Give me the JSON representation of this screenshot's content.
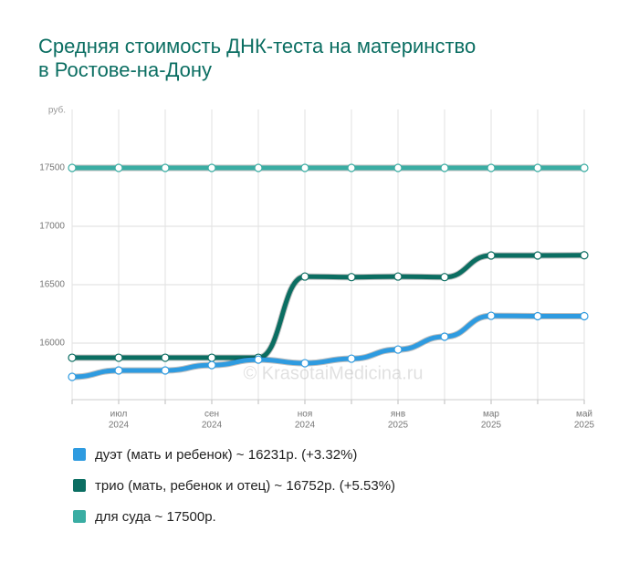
{
  "chart_data": {
    "type": "line",
    "title": [
      "Средняя стоимость ДНК-теста на материнство",
      "в Ростове-на-Дону"
    ],
    "y_unit": "руб.",
    "watermark": "© KrasotaiMedicina.ru",
    "categories": [
      null,
      "июл",
      null,
      "сен",
      null,
      "ноя",
      null,
      "янв",
      null,
      "мар",
      null,
      "май"
    ],
    "category_years": [
      null,
      "2024",
      null,
      "2024",
      null,
      "2024",
      null,
      "2025",
      null,
      "2025",
      null,
      "2025"
    ],
    "series": [
      {
        "name": "дуэт (мать и ребенок) ~ 16231р. (+3.32%)",
        "color": "#2e9be0",
        "values": [
          15711,
          15766,
          15766,
          15812,
          15859,
          15828,
          15867,
          15945,
          16055,
          16234,
          16231,
          16231
        ]
      },
      {
        "name": "трио (мать, ребенок и отец) ~ 16752р. (+5.53%)",
        "color": "#0b6e62",
        "values": [
          15875,
          15875,
          15875,
          15875,
          15875,
          16570,
          16565,
          16570,
          16565,
          16750,
          16750,
          16752
        ]
      },
      {
        "name": "для суда ~ 17500р.",
        "color": "#3aada3",
        "values": [
          17500,
          17500,
          17500,
          17500,
          17500,
          17500,
          17500,
          17500,
          17500,
          17500,
          17500,
          17500
        ]
      }
    ],
    "ylim": [
      15516,
      18000
    ],
    "yticks": [
      16000,
      16500,
      17000,
      17500
    ],
    "grid": true
  }
}
